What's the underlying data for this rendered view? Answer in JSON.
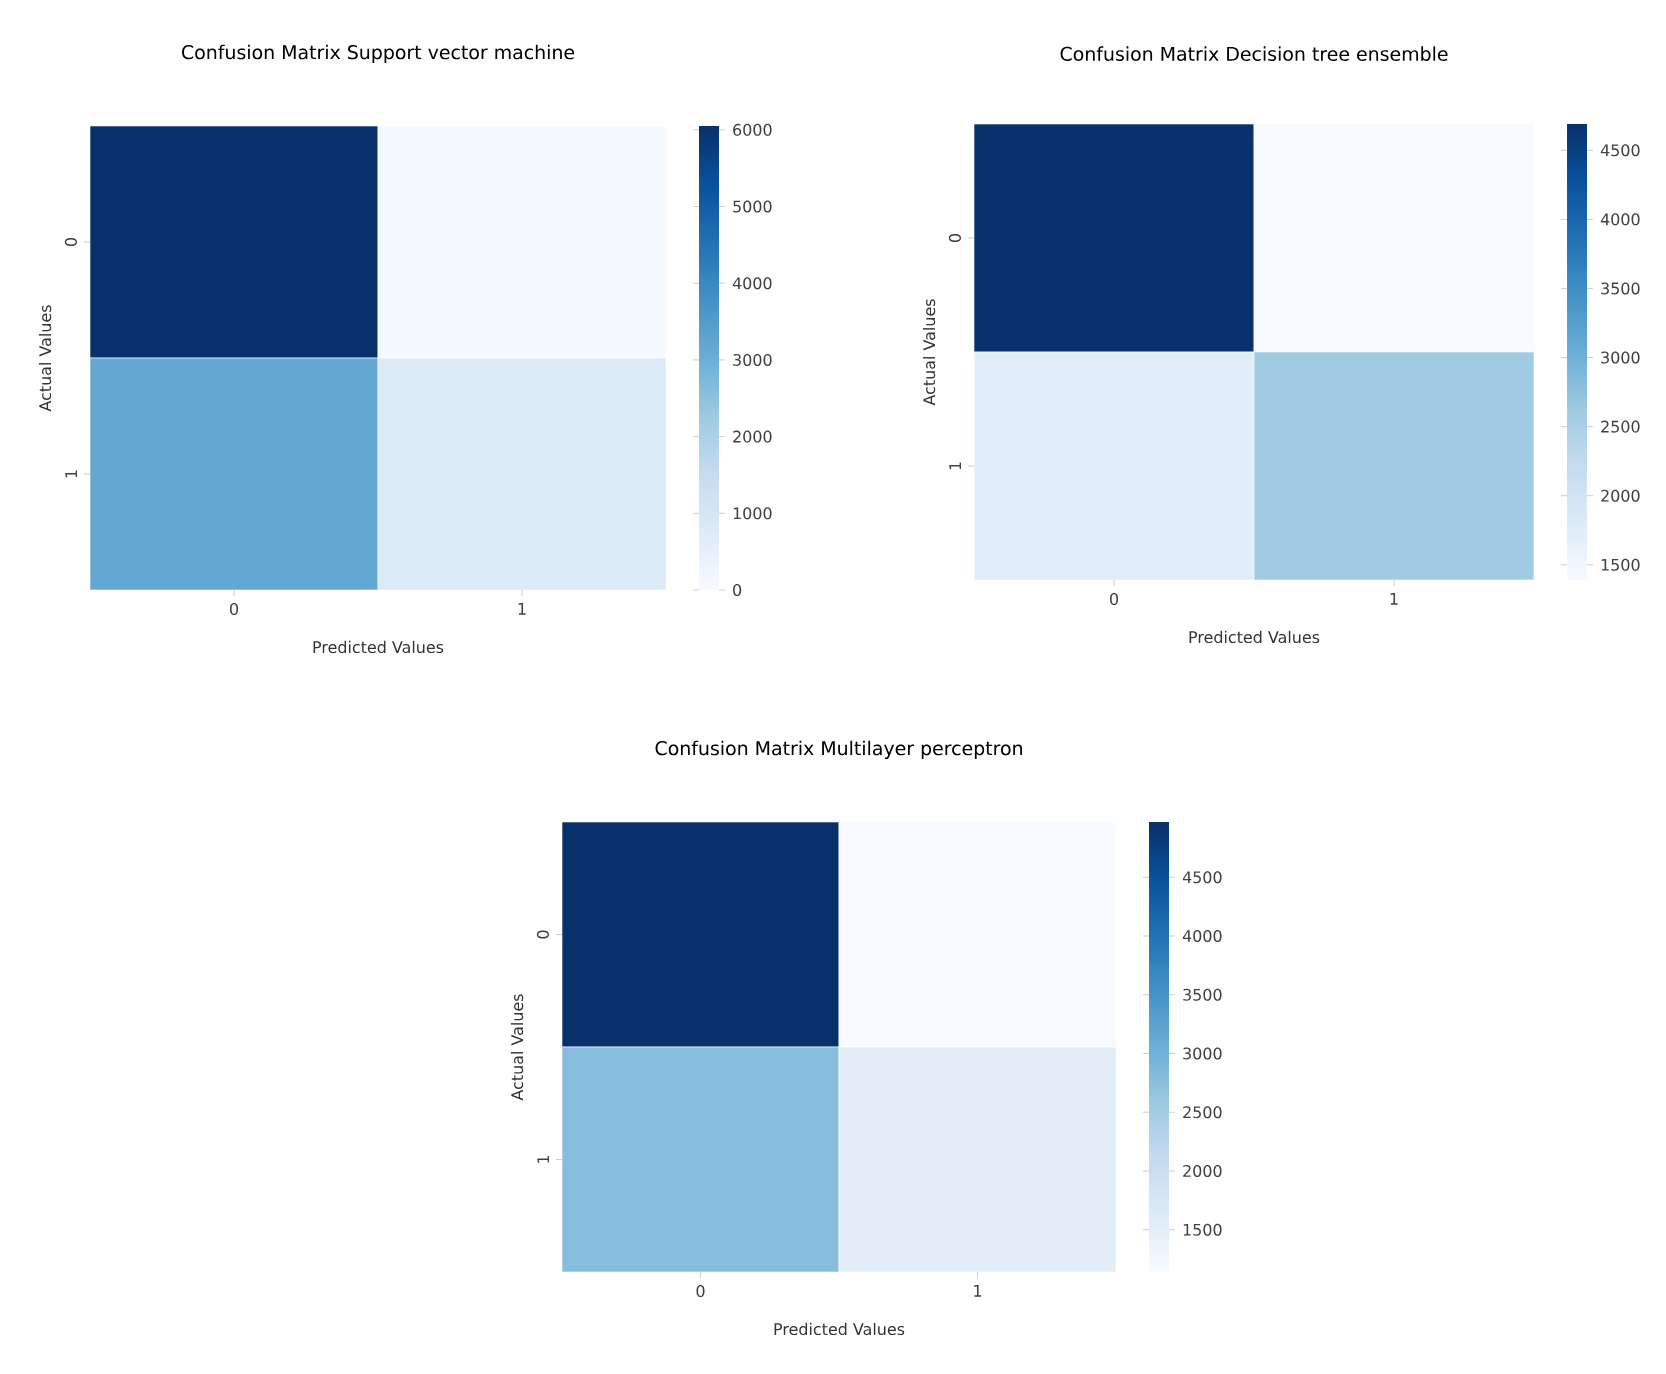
{
  "chart_data": [
    {
      "type": "heatmap",
      "title": "Confusion Matrix Support vector machine",
      "xlabel": "Predicted Values",
      "ylabel": "Actual Values",
      "categories": [
        "0",
        "1"
      ],
      "y_categories": [
        "0",
        "1"
      ],
      "cells": [
        [
          6050,
          50
        ],
        [
          3200,
          800
        ]
      ],
      "clim": [
        0,
        6050
      ],
      "cticks": [
        0,
        1000,
        2000,
        3000,
        4000,
        5000,
        6000
      ]
    },
    {
      "type": "heatmap",
      "title": "Confusion Matrix Decision tree ensemble",
      "xlabel": "Predicted Values",
      "ylabel": "Actual Values",
      "categories": [
        "0",
        "1"
      ],
      "y_categories": [
        "0",
        "1"
      ],
      "cells": [
        [
          4690,
          1390
        ],
        [
          1750,
          2600
        ]
      ],
      "clim": [
        1390,
        4690
      ],
      "cticks": [
        1500,
        2000,
        2500,
        3000,
        3500,
        4000,
        4500
      ]
    },
    {
      "type": "heatmap",
      "title": "Confusion Matrix Multilayer perceptron",
      "xlabel": "Predicted Values",
      "ylabel": "Actual Values",
      "categories": [
        "0",
        "1"
      ],
      "y_categories": [
        "0",
        "1"
      ],
      "cells": [
        [
          4970,
          1140
        ],
        [
          2800,
          1550
        ]
      ],
      "clim": [
        1140,
        4970
      ],
      "cticks": [
        1500,
        2000,
        2500,
        3000,
        3500,
        4000,
        4500
      ]
    }
  ]
}
